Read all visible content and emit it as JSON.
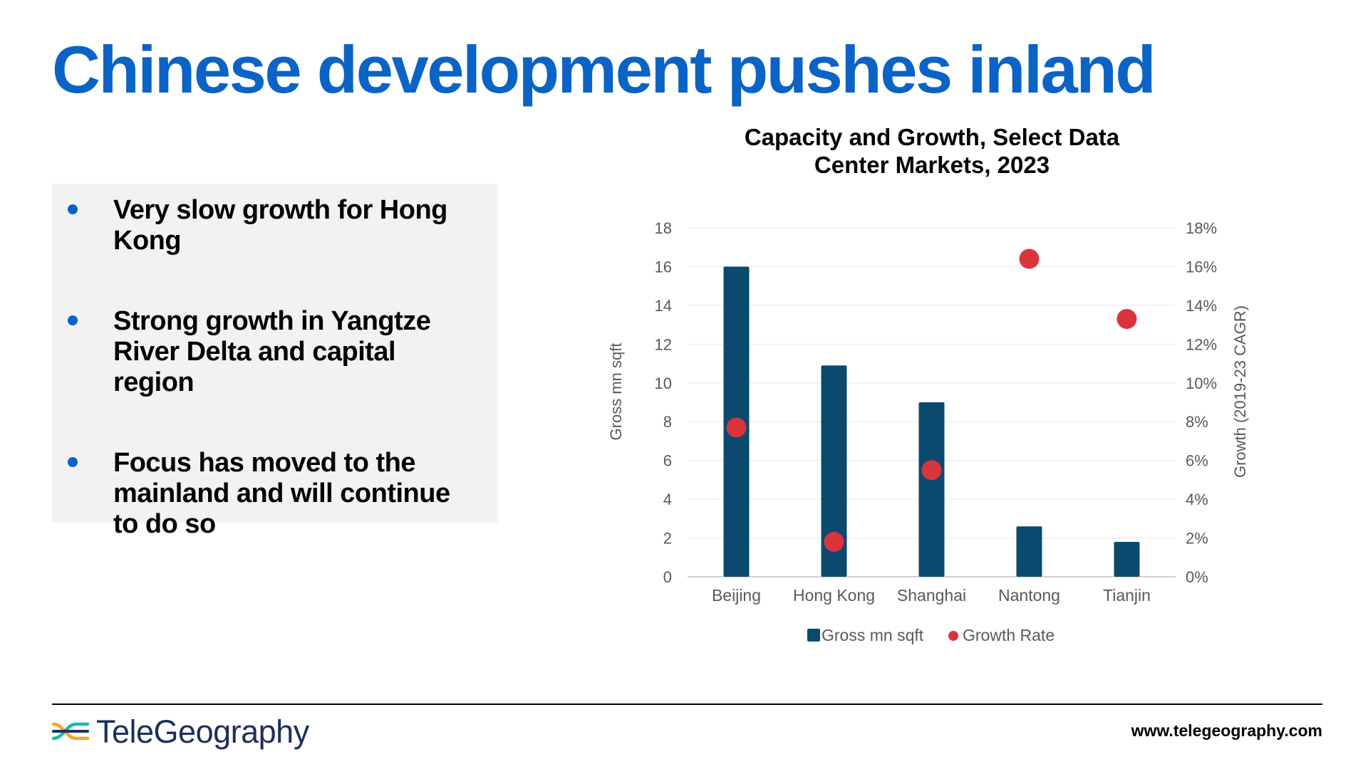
{
  "slide": {
    "title": "Chinese development pushes inland"
  },
  "bullets": [
    "Very slow growth for Hong Kong",
    "Strong growth in Yangtze River Delta and capital region",
    "Focus has moved to the mainland and will continue to do so"
  ],
  "colors": {
    "title": "#0b63c5",
    "bar": "#0b4a6e",
    "growth": "#d9343d",
    "bullet": "#0b63c5"
  },
  "chart_data": {
    "type": "bar",
    "title_line1": "Capacity and Growth, Select Data",
    "title_line2": "Center Markets, 2023",
    "categories": [
      "Beijing",
      "Hong Kong",
      "Shanghai",
      "Nantong",
      "Tianjin"
    ],
    "series": [
      {
        "name": "Gross mn sqft",
        "type": "bar",
        "axis": "left",
        "values": [
          16.0,
          10.9,
          9.0,
          2.6,
          1.8
        ]
      },
      {
        "name": "Growth Rate",
        "type": "scatter",
        "axis": "right",
        "values": [
          7.7,
          1.8,
          5.5,
          16.4,
          13.3
        ]
      }
    ],
    "ylabel": "Gross mn sqft",
    "y2label": "Growth (2019-23 CAGR)",
    "ylim": [
      0,
      18
    ],
    "y2lim": [
      0,
      18
    ],
    "yticks": [
      "0",
      "2",
      "4",
      "6",
      "8",
      "10",
      "12",
      "14",
      "16",
      "18"
    ],
    "y2ticks": [
      "0%",
      "2%",
      "4%",
      "6%",
      "8%",
      "10%",
      "12%",
      "14%",
      "16%",
      "18%"
    ],
    "legend_position": "bottom",
    "grid": true
  },
  "footer": {
    "logo_text": "TeleGeography",
    "url": "www.telegeography.com"
  }
}
